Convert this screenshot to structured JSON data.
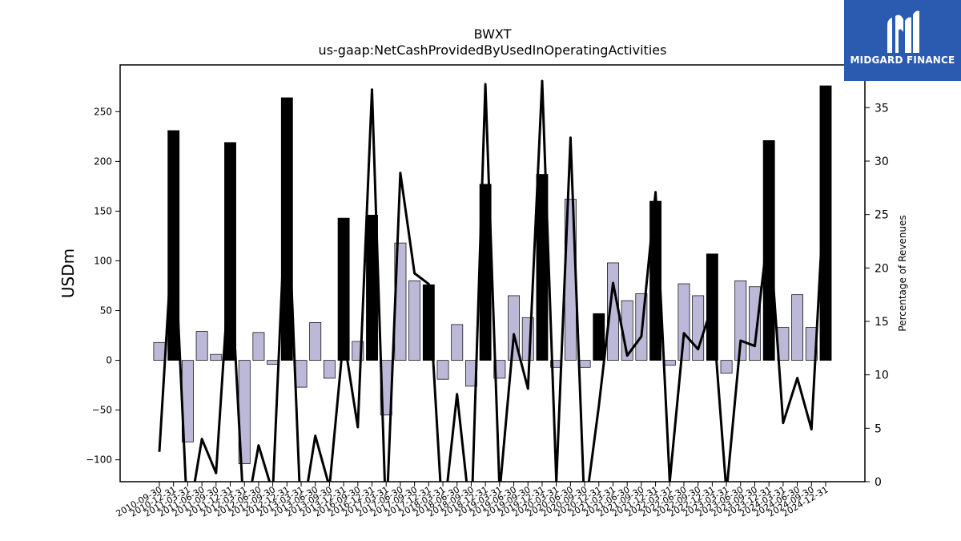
{
  "chart_data": {
    "type": "bar",
    "title": "BWXT",
    "subtitle": "us-gaap:NetCashProvidedByUsedInOperatingActivities",
    "ylabel": "USDm",
    "y2label": "Percentage of Revenues",
    "ylim": [
      -122,
      297
    ],
    "y2lim": [
      0,
      39
    ],
    "yticks": [
      -100,
      -50,
      0,
      50,
      100,
      150,
      200,
      250
    ],
    "y2ticks": [
      0,
      5,
      10,
      15,
      20,
      25,
      30,
      35
    ],
    "categories": [
      "2010-09-30",
      "2010-12-31",
      "2011-03-31",
      "2011-06-30",
      "2011-09-30",
      "2011-12-31",
      "2012-03-31",
      "2012-06-30",
      "2012-09-30",
      "2012-12-31",
      "2013-03-31",
      "2013-06-30",
      "2013-09-30",
      "2013-12-31",
      "2016-09-30",
      "2016-12-31",
      "2017-03-31",
      "2017-06-30",
      "2017-09-30",
      "2017-12-31",
      "2018-03-31",
      "2018-06-30",
      "2018-09-30",
      "2018-12-31",
      "2019-03-31",
      "2019-06-30",
      "2019-09-30",
      "2019-12-31",
      "2020-03-31",
      "2020-06-30",
      "2020-09-30",
      "2020-12-31",
      "2021-03-31",
      "2021-06-30",
      "2021-09-30",
      "2021-12-31",
      "2022-03-31",
      "2022-06-30",
      "2022-09-30",
      "2022-12-31",
      "2023-03-31",
      "2023-06-30",
      "2023-09-30",
      "2023-12-31",
      "2024-03-31",
      "2024-06-30",
      "2024-09-30",
      "2024-12-31"
    ],
    "series": [
      {
        "type": "bar",
        "values": [
          18,
          231,
          -82,
          29,
          6,
          219,
          -104,
          28,
          -4,
          264,
          -27,
          38,
          -18,
          143,
          19,
          146,
          -55,
          118,
          80,
          76,
          -19,
          36,
          -26,
          177,
          -18,
          65,
          43,
          187,
          -7,
          162,
          -7,
          47,
          98,
          60,
          67,
          160,
          -5,
          77,
          65,
          107,
          -13,
          80,
          74,
          221,
          33,
          66,
          33,
          276
        ],
        "annual": [
          false,
          true,
          false,
          false,
          false,
          true,
          false,
          false,
          false,
          true,
          false,
          false,
          false,
          true,
          false,
          true,
          false,
          false,
          false,
          true,
          false,
          false,
          false,
          true,
          false,
          false,
          false,
          true,
          false,
          false,
          false,
          true,
          false,
          false,
          false,
          true,
          false,
          false,
          false,
          true,
          false,
          false,
          false,
          true,
          false,
          false,
          false,
          true
        ],
        "colors": {
          "quarter": "#bcb8d8",
          "annual": "#000000"
        }
      },
      {
        "type": "line",
        "axis": "right",
        "values": [
          2.8,
          24.5,
          -4,
          4,
          0.8,
          21,
          -4,
          3.4,
          -1,
          29,
          -4,
          4.3,
          -0.5,
          13.6,
          5.1,
          36.7,
          -4,
          28.9,
          19.5,
          18.5,
          -4,
          8.2,
          -4,
          37.2,
          -1,
          13.8,
          8.7,
          37.5,
          0,
          32.2,
          -3,
          7.1,
          18.6,
          11.8,
          13.6,
          27.1,
          0,
          13.9,
          12.4,
          16.5,
          -1,
          13.2,
          12.7,
          24.2,
          5.5,
          9.7,
          4.9,
          29.5
        ],
        "color": "#000000"
      }
    ]
  },
  "logo": {
    "text": "MIDGARD FINANCE",
    "color": "#2a5bb0"
  }
}
